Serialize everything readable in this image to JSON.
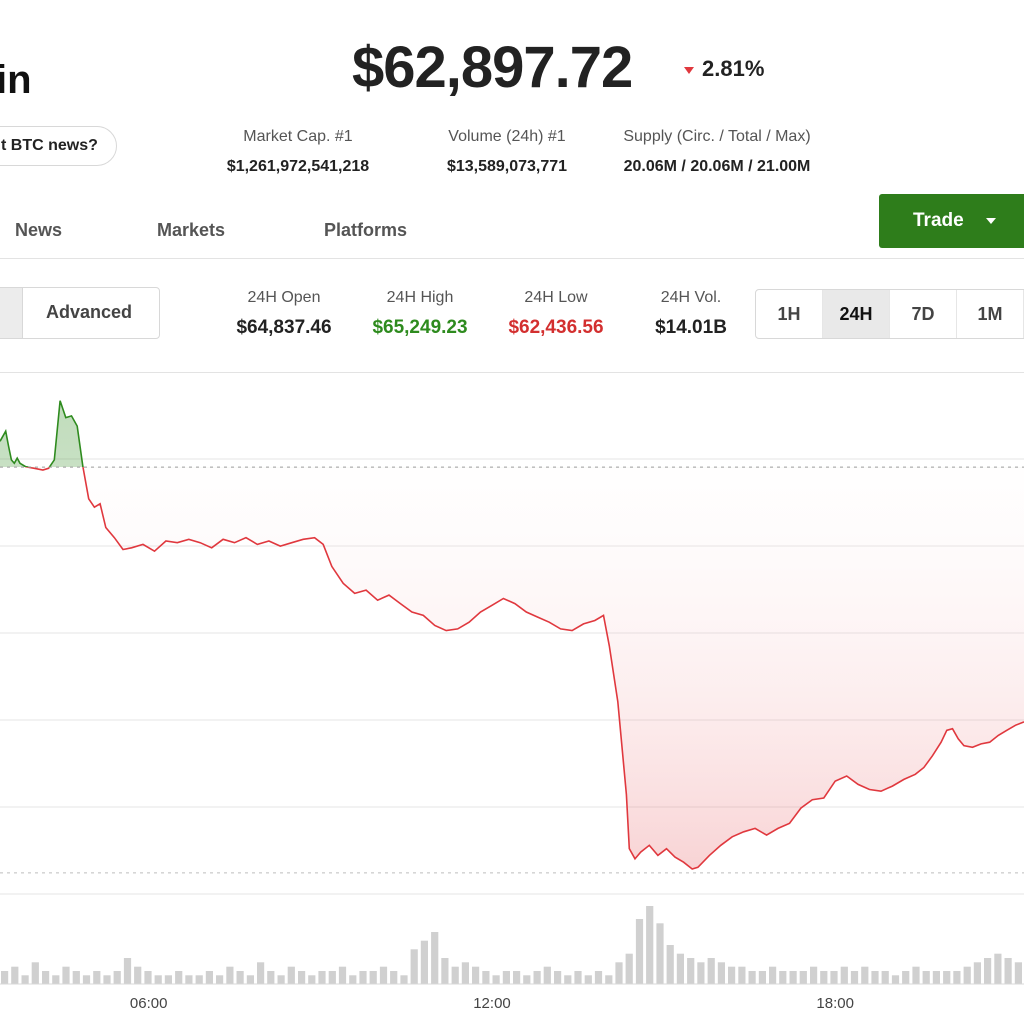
{
  "header": {
    "coin_name_visible": "in",
    "price": "$62,897.72",
    "change": "2.81%",
    "news_pill": "t BTC news?"
  },
  "stats": [
    {
      "label": "Market Cap. #1",
      "value": "$1,261,972,541,218"
    },
    {
      "label": "Volume (24h) #1",
      "value": "$13,589,073,771"
    },
    {
      "label": "Supply (Circ. / Total / Max)",
      "value": "20.06M / 20.06M / 21.00M"
    }
  ],
  "nav": {
    "tabs": [
      "News",
      "Markets",
      "Platforms"
    ],
    "trade_label": "Trade"
  },
  "controls": {
    "mode_label": "Advanced",
    "ranges": [
      "1H",
      "24H",
      "7D",
      "1M"
    ],
    "active_range": "24H"
  },
  "highlights": [
    {
      "label": "24H Open",
      "value": "$64,837.46",
      "color": "#222222"
    },
    {
      "label": "24H High",
      "value": "$65,249.23",
      "color": "#2e8b1e"
    },
    {
      "label": "24H Low",
      "value": "$62,436.56",
      "color": "#d32f2f"
    },
    {
      "label": "24H Vol.",
      "value": "$14.01B",
      "color": "#222222"
    }
  ],
  "colors": {
    "up": "#2e8b1e",
    "down": "#e0383e",
    "trade_button": "#2e7d1b"
  },
  "chart_data": {
    "type": "line",
    "x_unit": "hour of day",
    "xlim": [
      3.4,
      21.3
    ],
    "ylim": [
      62300,
      65400
    ],
    "grid": true,
    "baseline": 64837.46,
    "x_ticks": [
      "06:00",
      "12:00",
      "18:00"
    ],
    "x_tick_values": [
      6,
      12,
      18
    ],
    "price_series": [
      [
        3.4,
        64990
      ],
      [
        3.5,
        65050
      ],
      [
        3.55,
        64960
      ],
      [
        3.6,
        64880
      ],
      [
        3.65,
        64860
      ],
      [
        3.7,
        64890
      ],
      [
        3.75,
        64860
      ],
      [
        3.85,
        64840
      ],
      [
        4.0,
        64830
      ],
      [
        4.15,
        64820
      ],
      [
        4.25,
        64830
      ],
      [
        4.35,
        64880
      ],
      [
        4.45,
        65230
      ],
      [
        4.55,
        65130
      ],
      [
        4.65,
        65140
      ],
      [
        4.75,
        65080
      ],
      [
        4.85,
        64840
      ],
      [
        4.95,
        64650
      ],
      [
        5.05,
        64600
      ],
      [
        5.15,
        64620
      ],
      [
        5.25,
        64480
      ],
      [
        5.4,
        64420
      ],
      [
        5.55,
        64350
      ],
      [
        5.7,
        64360
      ],
      [
        5.9,
        64380
      ],
      [
        6.1,
        64340
      ],
      [
        6.3,
        64400
      ],
      [
        6.5,
        64390
      ],
      [
        6.7,
        64410
      ],
      [
        6.9,
        64390
      ],
      [
        7.1,
        64360
      ],
      [
        7.3,
        64410
      ],
      [
        7.5,
        64390
      ],
      [
        7.7,
        64420
      ],
      [
        7.9,
        64380
      ],
      [
        8.1,
        64400
      ],
      [
        8.3,
        64370
      ],
      [
        8.5,
        64390
      ],
      [
        8.7,
        64410
      ],
      [
        8.9,
        64420
      ],
      [
        9.05,
        64380
      ],
      [
        9.2,
        64250
      ],
      [
        9.4,
        64150
      ],
      [
        9.6,
        64090
      ],
      [
        9.8,
        64110
      ],
      [
        10.0,
        64050
      ],
      [
        10.2,
        64080
      ],
      [
        10.4,
        64030
      ],
      [
        10.6,
        63980
      ],
      [
        10.8,
        63960
      ],
      [
        11.0,
        63900
      ],
      [
        11.2,
        63870
      ],
      [
        11.4,
        63880
      ],
      [
        11.6,
        63920
      ],
      [
        11.8,
        63980
      ],
      [
        12.0,
        64020
      ],
      [
        12.2,
        64060
      ],
      [
        12.4,
        64030
      ],
      [
        12.6,
        63980
      ],
      [
        12.8,
        63950
      ],
      [
        13.0,
        63920
      ],
      [
        13.2,
        63880
      ],
      [
        13.4,
        63870
      ],
      [
        13.6,
        63910
      ],
      [
        13.8,
        63930
      ],
      [
        13.95,
        63960
      ],
      [
        14.05,
        63780
      ],
      [
        14.2,
        63450
      ],
      [
        14.35,
        62900
      ],
      [
        14.4,
        62580
      ],
      [
        14.5,
        62520
      ],
      [
        14.6,
        62560
      ],
      [
        14.75,
        62600
      ],
      [
        14.9,
        62540
      ],
      [
        15.05,
        62580
      ],
      [
        15.2,
        62530
      ],
      [
        15.35,
        62500
      ],
      [
        15.5,
        62460
      ],
      [
        15.6,
        62470
      ],
      [
        15.8,
        62540
      ],
      [
        16.0,
        62600
      ],
      [
        16.2,
        62650
      ],
      [
        16.4,
        62680
      ],
      [
        16.6,
        62700
      ],
      [
        16.8,
        62660
      ],
      [
        17.0,
        62700
      ],
      [
        17.2,
        62730
      ],
      [
        17.4,
        62820
      ],
      [
        17.6,
        62870
      ],
      [
        17.8,
        62880
      ],
      [
        18.0,
        62980
      ],
      [
        18.2,
        63010
      ],
      [
        18.4,
        62960
      ],
      [
        18.6,
        62930
      ],
      [
        18.8,
        62920
      ],
      [
        19.0,
        62950
      ],
      [
        19.2,
        62990
      ],
      [
        19.4,
        63020
      ],
      [
        19.55,
        63060
      ],
      [
        19.7,
        63130
      ],
      [
        19.85,
        63210
      ],
      [
        19.95,
        63280
      ],
      [
        20.05,
        63290
      ],
      [
        20.15,
        63230
      ],
      [
        20.25,
        63190
      ],
      [
        20.4,
        63180
      ],
      [
        20.55,
        63200
      ],
      [
        20.7,
        63210
      ],
      [
        20.85,
        63250
      ],
      [
        21.0,
        63280
      ],
      [
        21.15,
        63310
      ],
      [
        21.3,
        63330
      ]
    ],
    "volume_series": [
      3,
      4,
      2,
      5,
      3,
      2,
      4,
      3,
      2,
      3,
      2,
      3,
      6,
      4,
      3,
      2,
      2,
      3,
      2,
      2,
      3,
      2,
      4,
      3,
      2,
      5,
      3,
      2,
      4,
      3,
      2,
      3,
      3,
      4,
      2,
      3,
      3,
      4,
      3,
      2,
      8,
      10,
      12,
      6,
      4,
      5,
      4,
      3,
      2,
      3,
      3,
      2,
      3,
      4,
      3,
      2,
      3,
      2,
      3,
      2,
      5,
      7,
      15,
      18,
      14,
      9,
      7,
      6,
      5,
      6,
      5,
      4,
      4,
      3,
      3,
      4,
      3,
      3,
      3,
      4,
      3,
      3,
      4,
      3,
      4,
      3,
      3,
      2,
      3,
      4,
      3,
      3,
      3,
      3,
      4,
      5,
      6,
      7,
      6,
      5
    ]
  }
}
